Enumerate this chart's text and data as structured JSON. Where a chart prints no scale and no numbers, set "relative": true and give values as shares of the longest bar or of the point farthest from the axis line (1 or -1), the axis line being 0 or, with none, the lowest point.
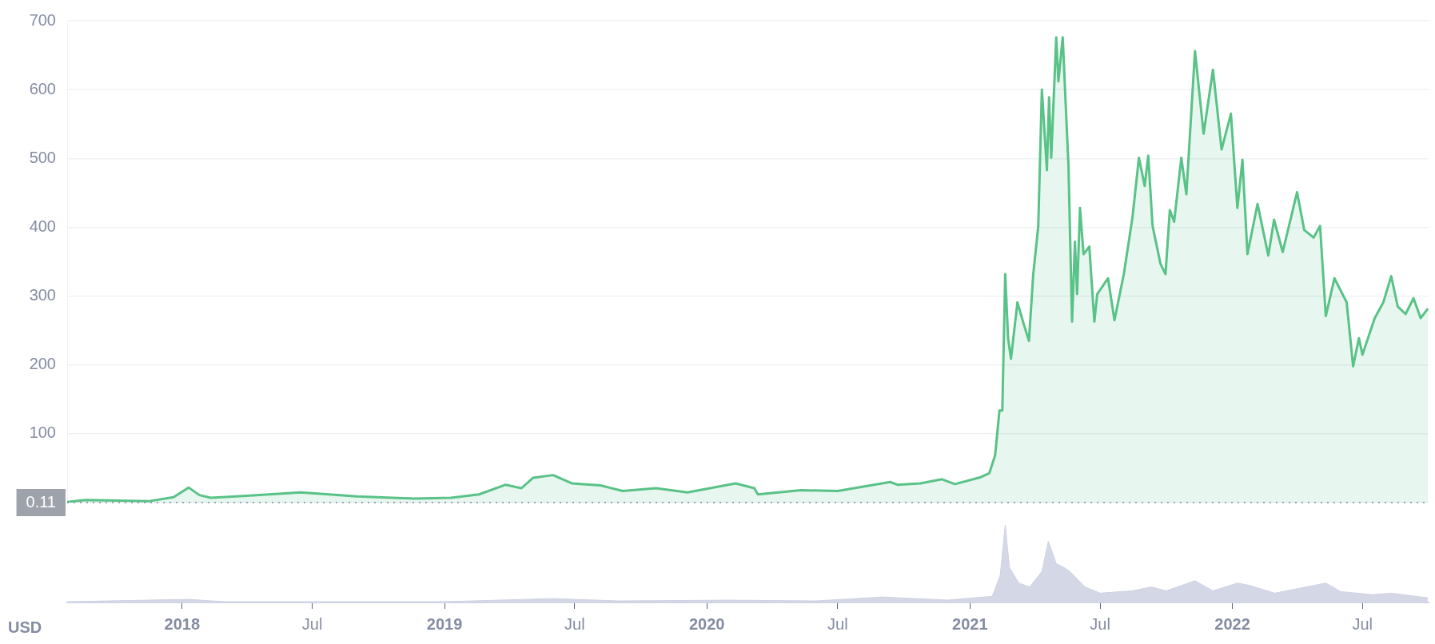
{
  "chart_data": [
    {
      "type": "area",
      "tick_labels": "y",
      "grid": "y",
      "legend": false,
      "marker": "none",
      "xlim": [
        "2017-07-25",
        "2022-10-01"
      ],
      "ylim": [
        0.11,
        700
      ],
      "yticks": [
        0.11,
        100,
        200,
        300,
        400,
        500,
        600,
        700
      ],
      "ref_lines": [
        {
          "axis": "y",
          "value": 0.11,
          "label": null,
          "color": "#808a9d",
          "line_style": "dotted"
        }
      ],
      "x": [
        "2017-07-25",
        "2017-08-20",
        "2017-11-15",
        "2017-12-20",
        "2018-01-10",
        "2018-01-25",
        "2018-02-10",
        "2018-04-01",
        "2018-06-15",
        "2018-09-01",
        "2018-11-20",
        "2019-01-10",
        "2019-02-18",
        "2019-03-27",
        "2019-04-18",
        "2019-05-04",
        "2019-06-01",
        "2019-06-27",
        "2019-08-06",
        "2019-09-06",
        "2019-10-22",
        "2019-12-05",
        "2020-02-10",
        "2020-03-07",
        "2020-03-12",
        "2020-05-11",
        "2020-07-01",
        "2020-09-12",
        "2020-09-22",
        "2020-10-24",
        "2020-11-23",
        "2020-12-11",
        "2021-01-16",
        "2021-01-28",
        "2021-02-05",
        "2021-02-11",
        "2021-02-15",
        "2021-02-19",
        "2021-02-23",
        "2021-02-27",
        "2021-03-08",
        "2021-03-16",
        "2021-03-24",
        "2021-03-30",
        "2021-04-06",
        "2021-04-11",
        "2021-04-18",
        "2021-04-21",
        "2021-04-24",
        "2021-05-01",
        "2021-05-04",
        "2021-05-10",
        "2021-05-15",
        "2021-05-18",
        "2021-05-23",
        "2021-05-27",
        "2021-05-30",
        "2021-06-03",
        "2021-06-08",
        "2021-06-16",
        "2021-06-23",
        "2021-06-27",
        "2021-07-12",
        "2021-07-21",
        "2021-08-03",
        "2021-08-15",
        "2021-08-24",
        "2021-09-01",
        "2021-09-06",
        "2021-09-12",
        "2021-09-23",
        "2021-09-30",
        "2021-10-06",
        "2021-10-12",
        "2021-10-22",
        "2021-10-29",
        "2021-11-10",
        "2021-11-22",
        "2021-12-05",
        "2021-12-17",
        "2021-12-30",
        "2022-01-08",
        "2022-01-15",
        "2022-01-22",
        "2022-02-05",
        "2022-02-20",
        "2022-02-28",
        "2022-03-12",
        "2022-04-01",
        "2022-04-11",
        "2022-04-24",
        "2022-05-03",
        "2022-05-11",
        "2022-05-23",
        "2022-06-09",
        "2022-06-18",
        "2022-06-26",
        "2022-07-01",
        "2022-07-18",
        "2022-07-30",
        "2022-08-10",
        "2022-08-19",
        "2022-08-30",
        "2022-09-10",
        "2022-09-20",
        "2022-09-30"
      ],
      "series": [
        {
          "color": "#58c287",
          "values": [
            1,
            4,
            2,
            8,
            22,
            11,
            7,
            10,
            15,
            9,
            6,
            7,
            12,
            26,
            21,
            36,
            40,
            28,
            25,
            17,
            21,
            15,
            28,
            21,
            12,
            18,
            17,
            30,
            26,
            28,
            34,
            27,
            37,
            43,
            69,
            134,
            134,
            332,
            239,
            209,
            291,
            262,
            235,
            332,
            402,
            600,
            483,
            589,
            501,
            676,
            612,
            676,
            559,
            490,
            263,
            379,
            303,
            428,
            361,
            372,
            263,
            303,
            326,
            265,
            332,
            414,
            501,
            460,
            504,
            402,
            347,
            332,
            425,
            408,
            501,
            448,
            656,
            536,
            629,
            513,
            565,
            428,
            498,
            361,
            434,
            359,
            411,
            364,
            451,
            396,
            385,
            402,
            271,
            326,
            291,
            198,
            239,
            215,
            268,
            291,
            329,
            285,
            274,
            297,
            268,
            282
          ]
        }
      ]
    },
    {
      "type": "area",
      "relative": true,
      "ylabel": "USD",
      "tick_labels": "x",
      "legend": false,
      "marker": "none",
      "xlim": [
        "2017-07-25",
        "2022-10-01"
      ],
      "xticks": [
        {
          "value": "2018-01-01",
          "label": "2018"
        },
        {
          "value": "2018-07-01",
          "label": "Jul"
        },
        {
          "value": "2019-01-01",
          "label": "2019"
        },
        {
          "value": "2019-07-01",
          "label": "Jul"
        },
        {
          "value": "2020-01-01",
          "label": "2020"
        },
        {
          "value": "2020-07-01",
          "label": "Jul"
        },
        {
          "value": "2021-01-01",
          "label": "2021"
        },
        {
          "value": "2021-07-01",
          "label": "Jul"
        },
        {
          "value": "2022-01-01",
          "label": "2022"
        },
        {
          "value": "2022-07-01",
          "label": "Jul"
        }
      ],
      "x": [
        "2017-07-25",
        "2018-01-10",
        "2018-03-01",
        "2019-01-01",
        "2019-06-01",
        "2019-09-01",
        "2020-02-01",
        "2020-06-01",
        "2020-09-01",
        "2020-12-01",
        "2021-02-01",
        "2021-02-12",
        "2021-02-19",
        "2021-02-25",
        "2021-03-10",
        "2021-03-25",
        "2021-04-11",
        "2021-04-20",
        "2021-05-01",
        "2021-05-12",
        "2021-05-20",
        "2021-06-10",
        "2021-07-01",
        "2021-08-15",
        "2021-09-10",
        "2021-10-01",
        "2021-11-10",
        "2021-12-05",
        "2022-01-08",
        "2022-01-25",
        "2022-03-01",
        "2022-05-11",
        "2022-06-01",
        "2022-07-15",
        "2022-08-10",
        "2022-09-30"
      ],
      "series": [
        {
          "color": "#cfd3e3",
          "values": [
            0.01,
            0.04,
            0.01,
            0.01,
            0.05,
            0.02,
            0.03,
            0.02,
            0.07,
            0.03,
            0.08,
            0.35,
            1,
            0.45,
            0.25,
            0.2,
            0.4,
            0.79,
            0.5,
            0.45,
            0.4,
            0.2,
            0.12,
            0.15,
            0.2,
            0.15,
            0.28,
            0.15,
            0.25,
            0.22,
            0.12,
            0.25,
            0.14,
            0.1,
            0.12,
            0.06
          ]
        }
      ]
    }
  ]
}
